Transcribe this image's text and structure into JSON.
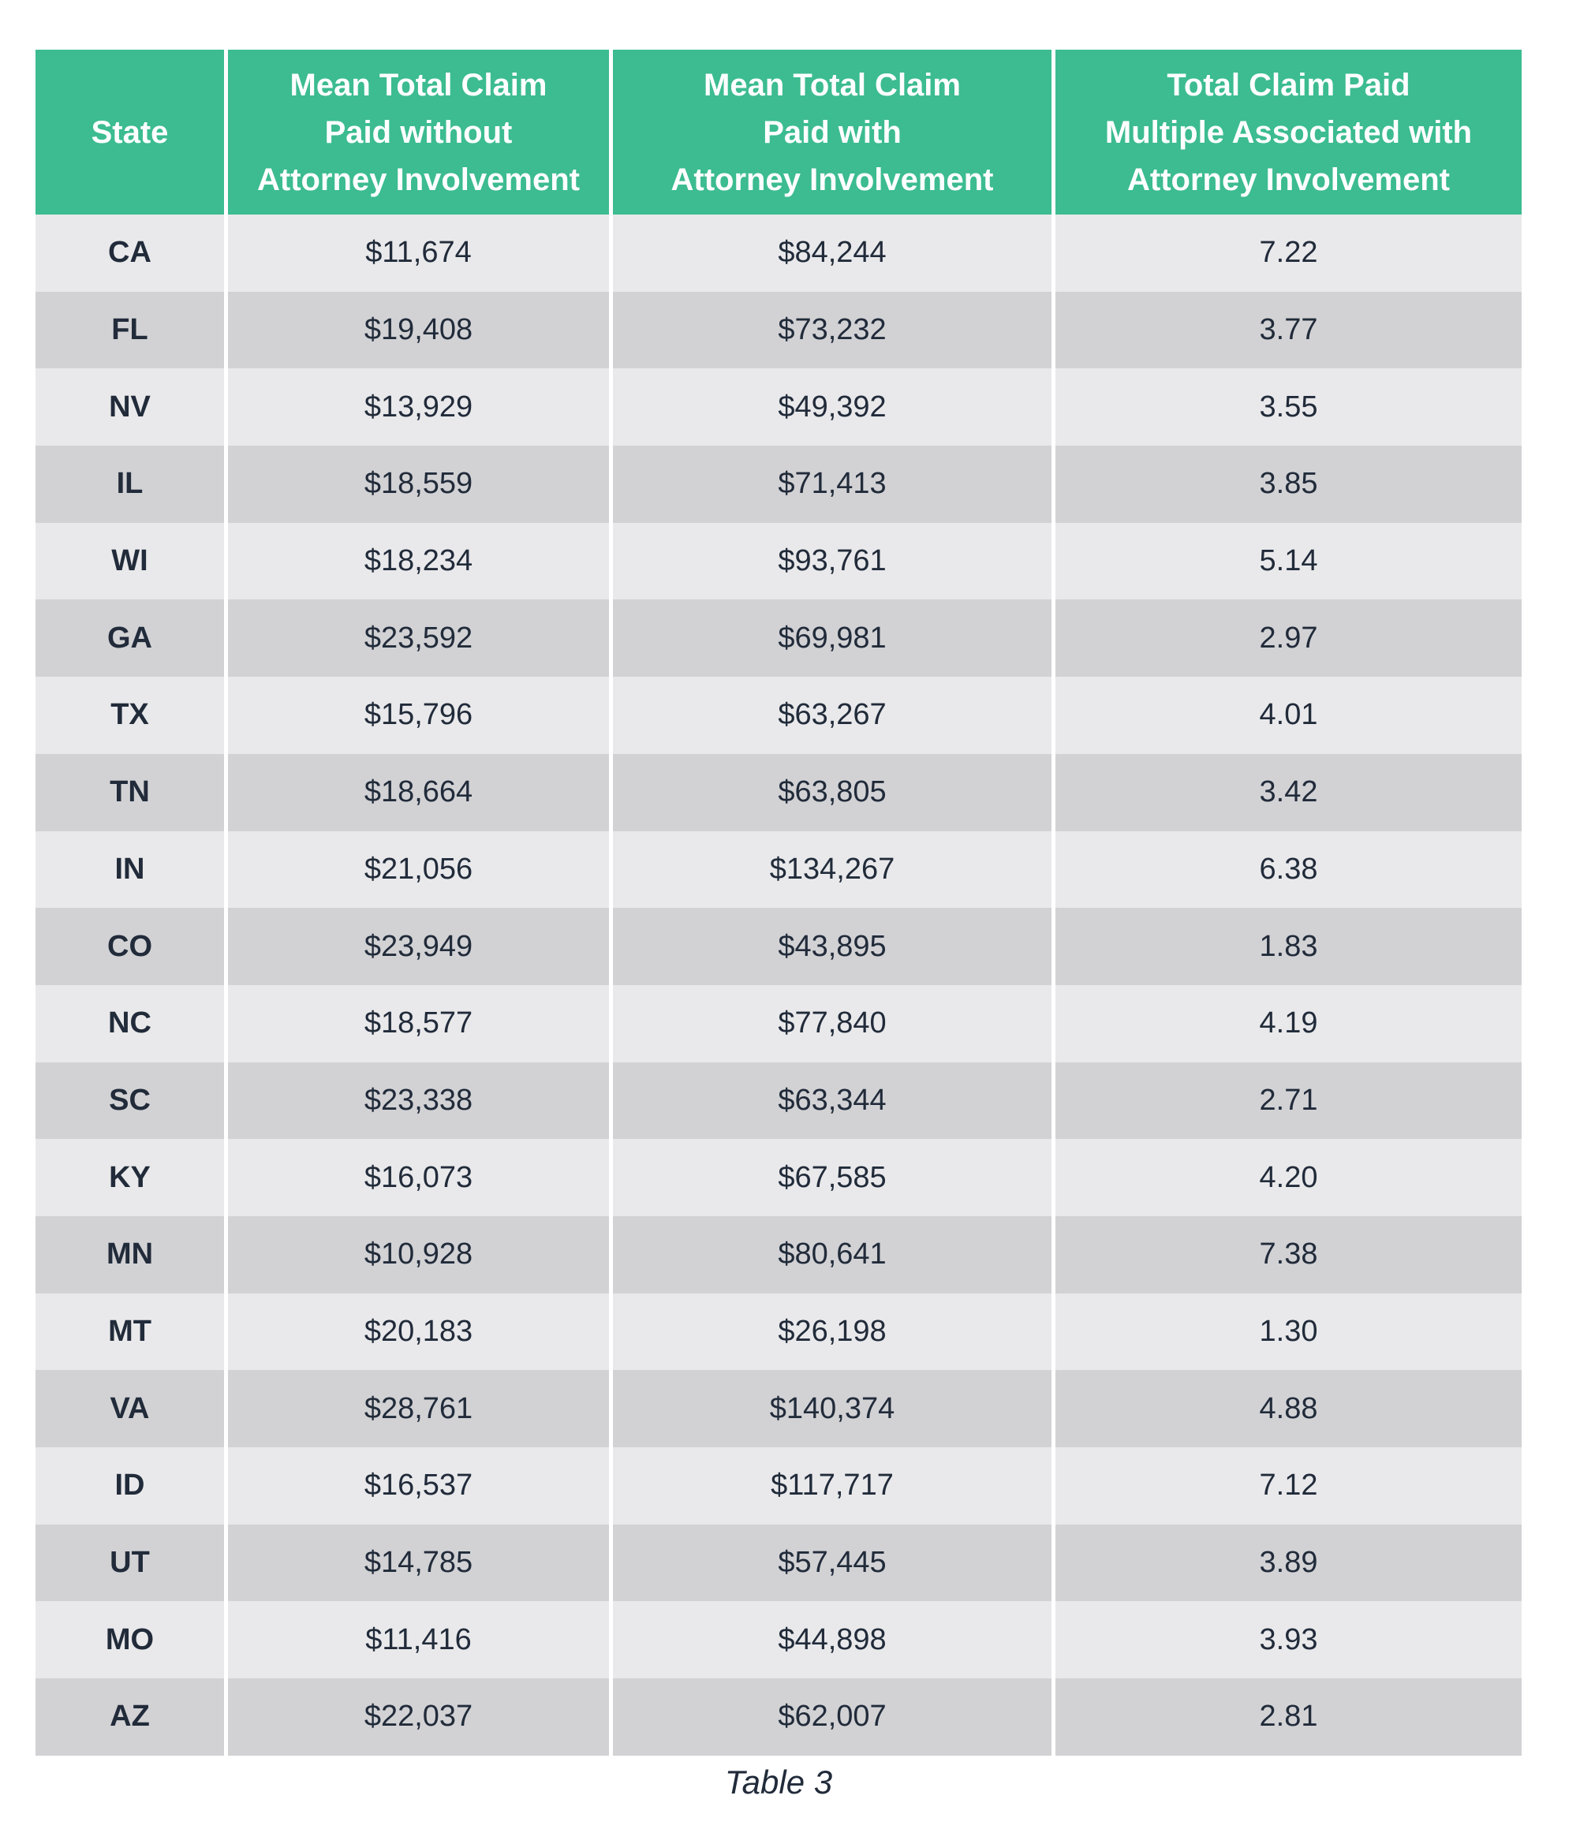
{
  "caption": "Table 3",
  "colors": {
    "header_bg": "#3cbc90",
    "header_text": "#ffffff",
    "row_light": "#e9e9eb",
    "row_dark": "#d2d2d5",
    "body_text": "#212b3a",
    "page_bg": "#ffffff"
  },
  "table": {
    "columns": [
      {
        "label": "State"
      },
      {
        "label": "Mean Total Claim\nPaid without\nAttorney Involvement"
      },
      {
        "label": "Mean Total Claim\nPaid with\nAttorney Involvement"
      },
      {
        "label": "Total Claim Paid\nMultiple Associated with\nAttorney Involvement"
      }
    ],
    "rows": [
      {
        "state": "CA",
        "without": "$11,674",
        "with": "$84,244",
        "multiple": "7.22"
      },
      {
        "state": "FL",
        "without": "$19,408",
        "with": "$73,232",
        "multiple": "3.77"
      },
      {
        "state": "NV",
        "without": "$13,929",
        "with": "$49,392",
        "multiple": "3.55"
      },
      {
        "state": "IL",
        "without": "$18,559",
        "with": "$71,413",
        "multiple": "3.85"
      },
      {
        "state": "WI",
        "without": "$18,234",
        "with": "$93,761",
        "multiple": "5.14"
      },
      {
        "state": "GA",
        "without": "$23,592",
        "with": "$69,981",
        "multiple": "2.97"
      },
      {
        "state": "TX",
        "without": "$15,796",
        "with": "$63,267",
        "multiple": "4.01"
      },
      {
        "state": "TN",
        "without": "$18,664",
        "with": "$63,805",
        "multiple": "3.42"
      },
      {
        "state": "IN",
        "without": "$21,056",
        "with": "$134,267",
        "multiple": "6.38"
      },
      {
        "state": "CO",
        "without": "$23,949",
        "with": "$43,895",
        "multiple": "1.83"
      },
      {
        "state": "NC",
        "without": "$18,577",
        "with": "$77,840",
        "multiple": "4.19"
      },
      {
        "state": "SC",
        "without": "$23,338",
        "with": "$63,344",
        "multiple": "2.71"
      },
      {
        "state": "KY",
        "without": "$16,073",
        "with": "$67,585",
        "multiple": "4.20"
      },
      {
        "state": "MN",
        "without": "$10,928",
        "with": "$80,641",
        "multiple": "7.38"
      },
      {
        "state": "MT",
        "without": "$20,183",
        "with": "$26,198",
        "multiple": "1.30"
      },
      {
        "state": "VA",
        "without": "$28,761",
        "with": "$140,374",
        "multiple": "4.88"
      },
      {
        "state": "ID",
        "without": "$16,537",
        "with": "$117,717",
        "multiple": "7.12"
      },
      {
        "state": "UT",
        "without": "$14,785",
        "with": "$57,445",
        "multiple": "3.89"
      },
      {
        "state": "MO",
        "without": "$11,416",
        "with": "$44,898",
        "multiple": "3.93"
      },
      {
        "state": "AZ",
        "without": "$22,037",
        "with": "$62,007",
        "multiple": "2.81"
      }
    ]
  },
  "chart_data": {
    "type": "table",
    "title": "Table 3",
    "columns": [
      "State",
      "Mean Total Claim Paid without Attorney Involvement",
      "Mean Total Claim Paid with Attorney Involvement",
      "Total Claim Paid Multiple Associated with Attorney Involvement"
    ],
    "rows": [
      [
        "CA",
        11674,
        84244,
        7.22
      ],
      [
        "FL",
        19408,
        73232,
        3.77
      ],
      [
        "NV",
        13929,
        49392,
        3.55
      ],
      [
        "IL",
        18559,
        71413,
        3.85
      ],
      [
        "WI",
        18234,
        93761,
        5.14
      ],
      [
        "GA",
        23592,
        69981,
        2.97
      ],
      [
        "TX",
        15796,
        63267,
        4.01
      ],
      [
        "TN",
        18664,
        63805,
        3.42
      ],
      [
        "IN",
        21056,
        134267,
        6.38
      ],
      [
        "CO",
        23949,
        43895,
        1.83
      ],
      [
        "NC",
        18577,
        77840,
        4.19
      ],
      [
        "SC",
        23338,
        63344,
        2.71
      ],
      [
        "KY",
        16073,
        67585,
        4.2
      ],
      [
        "MN",
        10928,
        80641,
        7.38
      ],
      [
        "MT",
        20183,
        26198,
        1.3
      ],
      [
        "VA",
        28761,
        140374,
        4.88
      ],
      [
        "ID",
        16537,
        117717,
        7.12
      ],
      [
        "UT",
        14785,
        57445,
        3.89
      ],
      [
        "MO",
        11416,
        44898,
        3.93
      ],
      [
        "AZ",
        22037,
        62007,
        2.81
      ]
    ]
  }
}
